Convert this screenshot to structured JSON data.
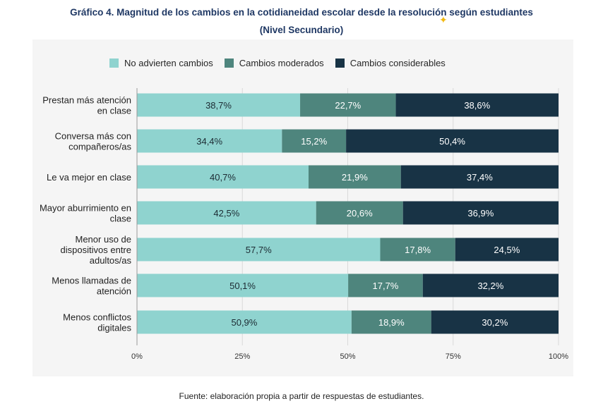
{
  "title": "Gráfico 4. Magnitud de los cambios en la cotidianeidad escolar desde la resolución según estudiantes",
  "subtitle": "(Nivel Secundario)",
  "source": "Fuente: elaboración propia a partir de respuestas de estudiantes.",
  "colors": {
    "no_cambios": "#8fd3cf",
    "moderados": "#4e857d",
    "considerables": "#183345",
    "title": "#1f3864",
    "star": "#f2b90f"
  },
  "chart_data": {
    "type": "bar",
    "orientation": "horizontal",
    "stacked": true,
    "percent": true,
    "categories": [
      [
        "Prestan más atención",
        "en clase"
      ],
      [
        "Conversa más con",
        "compañeros/as"
      ],
      [
        "Le va mejor en clase"
      ],
      [
        "Mayor aburrimiento en",
        "clase"
      ],
      [
        "Menor uso de",
        "dispositivos entre",
        "adultos/as"
      ],
      [
        "Menos llamadas de",
        "atención"
      ],
      [
        "Menos conflictos",
        "digitales"
      ]
    ],
    "series": [
      {
        "name": "No advierten cambios",
        "values": [
          38.7,
          34.4,
          40.7,
          42.5,
          57.7,
          50.1,
          50.9
        ]
      },
      {
        "name": "Cambios moderados",
        "values": [
          22.7,
          15.2,
          21.9,
          20.6,
          17.8,
          17.7,
          18.9
        ]
      },
      {
        "name": "Cambios considerables",
        "values": [
          38.6,
          50.4,
          37.4,
          36.9,
          24.5,
          32.2,
          30.2
        ]
      }
    ],
    "data_labels": [
      [
        "38,7%",
        "34,4%",
        "40,7%",
        "42,5%",
        "57,7%",
        "50,1%",
        "50,9%"
      ],
      [
        "22,7%",
        "15,2%",
        "21,9%",
        "20,6%",
        "17,8%",
        "17,7%",
        "18,9%"
      ],
      [
        "38,6%",
        "50,4%",
        "37,4%",
        "36,9%",
        "24,5%",
        "32,2%",
        "30,2%"
      ]
    ],
    "x_ticks": [
      "0%",
      "25%",
      "50%",
      "75%",
      "100%"
    ],
    "xlim": [
      0,
      100
    ],
    "legend_position": "top",
    "grid": true
  }
}
